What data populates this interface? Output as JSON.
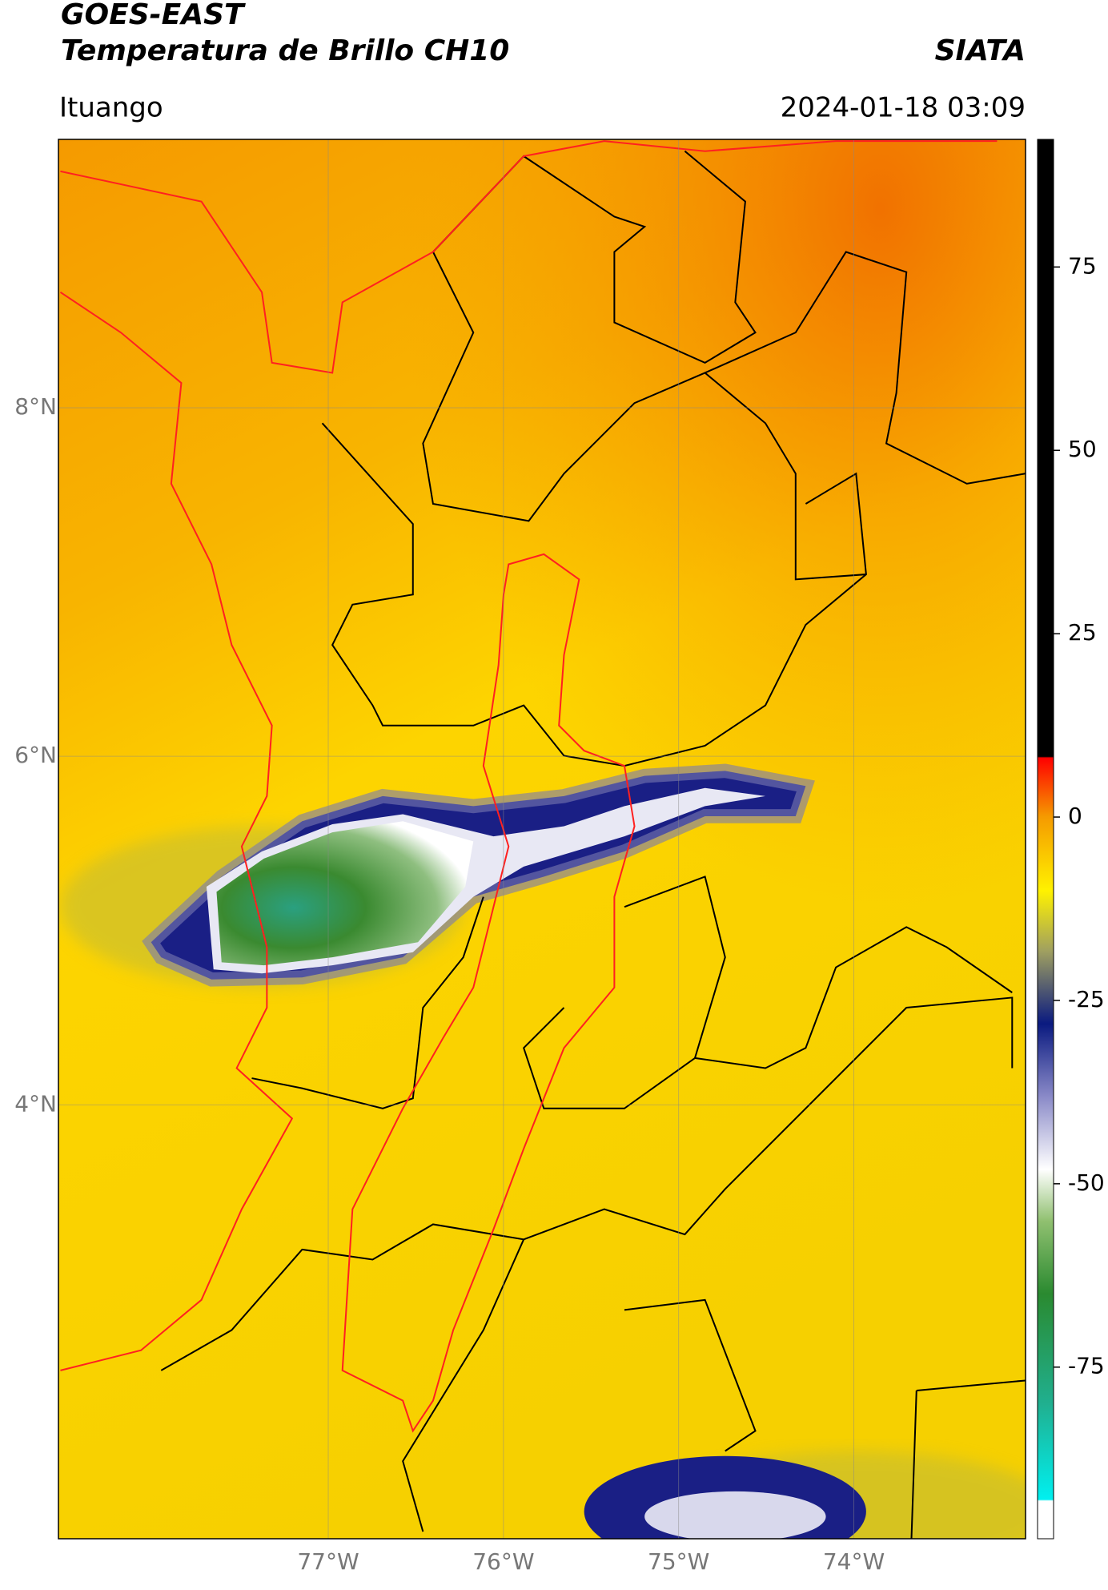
{
  "header": {
    "title": "GOES-EAST",
    "subtitle": "Temperatura de Brillo CH10",
    "brand": "SIATA",
    "location": "Ituango",
    "timestamp": "2024-01-18 03:09"
  },
  "map": {
    "xlim": [
      -78.54,
      -73.02
    ],
    "ylim": [
      1.51,
      9.54
    ],
    "xticks": [
      {
        "value": -77,
        "label": "77°W"
      },
      {
        "value": -76,
        "label": "76°W"
      },
      {
        "value": -75,
        "label": "75°W"
      },
      {
        "value": -74,
        "label": "74°W"
      }
    ],
    "yticks": [
      {
        "value": 4,
        "label": "4°N"
      },
      {
        "value": 6,
        "label": "6°N"
      },
      {
        "value": 8,
        "label": "8°N"
      }
    ]
  },
  "colorbar": {
    "lim": [
      -98.4,
      92.4
    ],
    "ticks": [
      -75,
      -50,
      -25,
      0,
      25,
      50,
      75
    ]
  }
}
